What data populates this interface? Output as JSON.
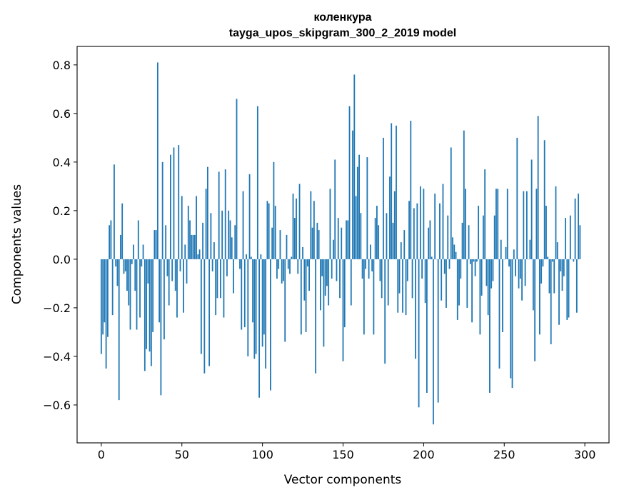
{
  "chart_data": {
    "type": "bar",
    "title": [
      "коленкура",
      "tayga_upos_skipgram_300_2_2019 model"
    ],
    "xlabel": "Vector components",
    "ylabel": "Components values",
    "xlim": [
      -15,
      315
    ],
    "ylim": [
      -0.756,
      0.876
    ],
    "xticks": [
      0,
      50,
      100,
      150,
      200,
      250,
      300
    ],
    "xtick_labels": [
      "0",
      "50",
      "100",
      "150",
      "200",
      "250",
      "300"
    ],
    "yticks": [
      -0.6,
      -0.4,
      -0.2,
      0.0,
      0.2,
      0.4,
      0.6,
      0.8
    ],
    "ytick_labels": [
      "−0.6",
      "−0.4",
      "−0.2",
      "0.0",
      "0.2",
      "0.4",
      "0.6",
      "0.8"
    ],
    "grid": false,
    "bar_color": "#1f77b4",
    "values": [
      -0.39,
      -0.31,
      -0.26,
      -0.45,
      -0.32,
      0.14,
      0.16,
      -0.23,
      0.39,
      -0.03,
      -0.11,
      -0.58,
      0.1,
      0.23,
      -0.06,
      -0.05,
      -0.13,
      -0.19,
      -0.29,
      -0.02,
      0.06,
      -0.13,
      -0.29,
      0.16,
      -0.24,
      -0.03,
      0.06,
      -0.46,
      -0.37,
      -0.1,
      -0.38,
      -0.44,
      -0.3,
      0.12,
      0.12,
      0.81,
      -0.26,
      -0.56,
      0.4,
      -0.33,
      0.14,
      -0.07,
      -0.19,
      0.43,
      -0.09,
      0.46,
      -0.13,
      -0.24,
      0.47,
      -0.05,
      0.26,
      -0.22,
      0.06,
      -0.1,
      0.22,
      0.16,
      0.1,
      0.1,
      0.1,
      0.26,
      0.02,
      0.04,
      -0.39,
      0.15,
      -0.47,
      0.29,
      0.38,
      -0.44,
      0.19,
      -0.05,
      0.07,
      -0.23,
      -0.16,
      0.36,
      -0.16,
      0.2,
      -0.24,
      0.37,
      -0.07,
      0.2,
      0.16,
      0.09,
      -0.14,
      0.14,
      0.66,
      0.0,
      -0.04,
      -0.29,
      0.28,
      -0.28,
      0.02,
      -0.4,
      0.35,
      0.01,
      -0.26,
      -0.41,
      -0.39,
      0.63,
      -0.57,
      0.02,
      -0.36,
      -0.31,
      -0.45,
      0.24,
      0.23,
      -0.54,
      0.13,
      0.4,
      0.22,
      -0.08,
      -0.04,
      0.12,
      -0.1,
      -0.09,
      -0.34,
      0.1,
      -0.04,
      -0.06,
      0.01,
      0.27,
      0.17,
      0.25,
      -0.06,
      0.31,
      -0.31,
      0.05,
      -0.17,
      -0.3,
      -0.03,
      -0.13,
      0.28,
      0.13,
      0.24,
      -0.47,
      0.15,
      0.12,
      -0.21,
      -0.07,
      -0.36,
      -0.15,
      -0.11,
      -0.19,
      0.29,
      -0.08,
      0.08,
      0.41,
      -0.09,
      0.17,
      -0.16,
      0.13,
      -0.42,
      -0.28,
      0.16,
      0.16,
      0.63,
      -0.19,
      0.53,
      0.76,
      0.26,
      0.38,
      0.43,
      0.19,
      -0.08,
      -0.31,
      -0.04,
      0.42,
      -0.08,
      0.06,
      -0.05,
      -0.31,
      0.17,
      0.22,
      0.14,
      -0.09,
      -0.16,
      0.5,
      -0.43,
      0.19,
      -0.19,
      0.34,
      0.56,
      0.15,
      0.28,
      0.55,
      -0.22,
      -0.14,
      0.07,
      -0.22,
      0.12,
      -0.23,
      -0.09,
      0.24,
      0.57,
      -0.16,
      0.21,
      -0.41,
      0.23,
      -0.61,
      0.3,
      -0.08,
      0.29,
      -0.18,
      -0.55,
      0.13,
      0.16,
      0.01,
      -0.68,
      0.27,
      0.0,
      -0.59,
      0.23,
      -0.17,
      0.31,
      -0.06,
      -0.2,
      0.18,
      -0.04,
      0.46,
      0.09,
      0.06,
      0.03,
      -0.25,
      -0.19,
      -0.08,
      0.15,
      0.53,
      0.29,
      -0.2,
      0.14,
      -0.02,
      -0.26,
      -0.01,
      -0.07,
      -0.01,
      0.22,
      -0.31,
      -0.15,
      0.18,
      0.37,
      -0.11,
      -0.23,
      -0.55,
      -0.12,
      -0.09,
      0.18,
      0.29,
      0.29,
      -0.45,
      0.08,
      -0.3,
      0.0,
      0.05,
      0.29,
      -0.03,
      -0.49,
      -0.53,
      0.04,
      -0.07,
      0.5,
      -0.12,
      -0.08,
      -0.17,
      0.28,
      -0.11,
      0.28,
      0.0,
      0.08,
      0.41,
      -0.21,
      -0.42,
      0.29,
      0.59,
      -0.31,
      -0.1,
      -0.03,
      0.49,
      0.22,
      0.01,
      -0.14,
      -0.35,
      -0.01,
      -0.14,
      0.3,
      0.07,
      -0.27,
      -0.05,
      -0.13,
      -0.07,
      0.17,
      -0.25,
      -0.24,
      0.18,
      0.0,
      -0.01,
      0.25,
      -0.22,
      0.27,
      0.14
    ]
  }
}
